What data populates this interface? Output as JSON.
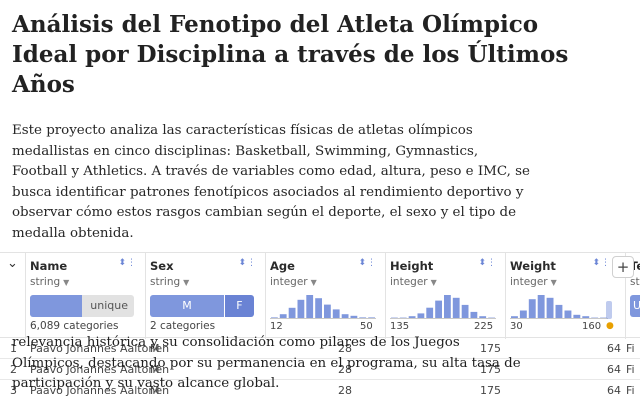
{
  "title": "Análisis del Fenotipo del Atleta Olímpico Ideal por Disciplina a través de los Últimos Años",
  "description": "Este proyecto analiza las características físicas de atletas olímpicos medallistas en cinco disciplinas: Basketball, Swimming, Gymnastics, Football y Athletics. A través de variables como edad, altura, peso e IMC, se busca identificar patrones fenotípicos asociados al rendimiento deportivo y observar cómo estos rasgos cambian según el deporte, el sexo y el tipo de medalla obtenida.",
  "overlay_text": "relevancia histórica y su consolidación como pilares de los Juegos Olímpicos, destacando por su permanencia en el programa, su alta tasa de participación y su vasto alcance global.",
  "table": {
    "expand_glyph": "⌄",
    "add_column": "+",
    "columns": [
      {
        "name": "Name",
        "type": "string",
        "summary": "unique",
        "footer": "6,089 categories",
        "unique_fraction": 0.5
      },
      {
        "name": "Sex",
        "type": "string",
        "categories": [
          "M",
          "F"
        ],
        "shares": [
          0.72,
          0.28
        ],
        "footer": "2 categories"
      },
      {
        "name": "Age",
        "type": "integer",
        "min": "12",
        "max": "50",
        "hist": [
          1,
          3,
          7,
          12,
          15,
          13,
          9,
          6,
          3,
          2,
          1,
          1
        ]
      },
      {
        "name": "Height",
        "type": "integer",
        "min": "135",
        "max": "225",
        "hist": [
          1,
          1,
          2,
          4,
          8,
          13,
          17,
          15,
          10,
          5,
          2,
          1
        ]
      },
      {
        "name": "Weight",
        "type": "integer",
        "min": "30",
        "max": "160",
        "hist": [
          2,
          6,
          14,
          17,
          15,
          10,
          6,
          3,
          2,
          1,
          1
        ]
      },
      {
        "name": "Te",
        "type": "st"
      }
    ],
    "rows": [
      {
        "index": "1",
        "name": "Paavo Johannes Aaltonen",
        "sex": "M",
        "age": "28",
        "height": "175",
        "weight": "64",
        "team": "Fi"
      },
      {
        "index": "2",
        "name": "Paavo Johannes Aaltonen",
        "sex": "M",
        "age": "28",
        "height": "175",
        "weight": "64",
        "team": "Fi"
      },
      {
        "index": "3",
        "name": "Paavo Johannes Aaltonen",
        "sex": "M",
        "age": "28",
        "height": "175",
        "weight": "64",
        "team": "Fi"
      }
    ]
  },
  "colors": {
    "accent": "#7f97dd",
    "accent_dark": "#6a83d4",
    "row_marker": "#e8a000"
  }
}
